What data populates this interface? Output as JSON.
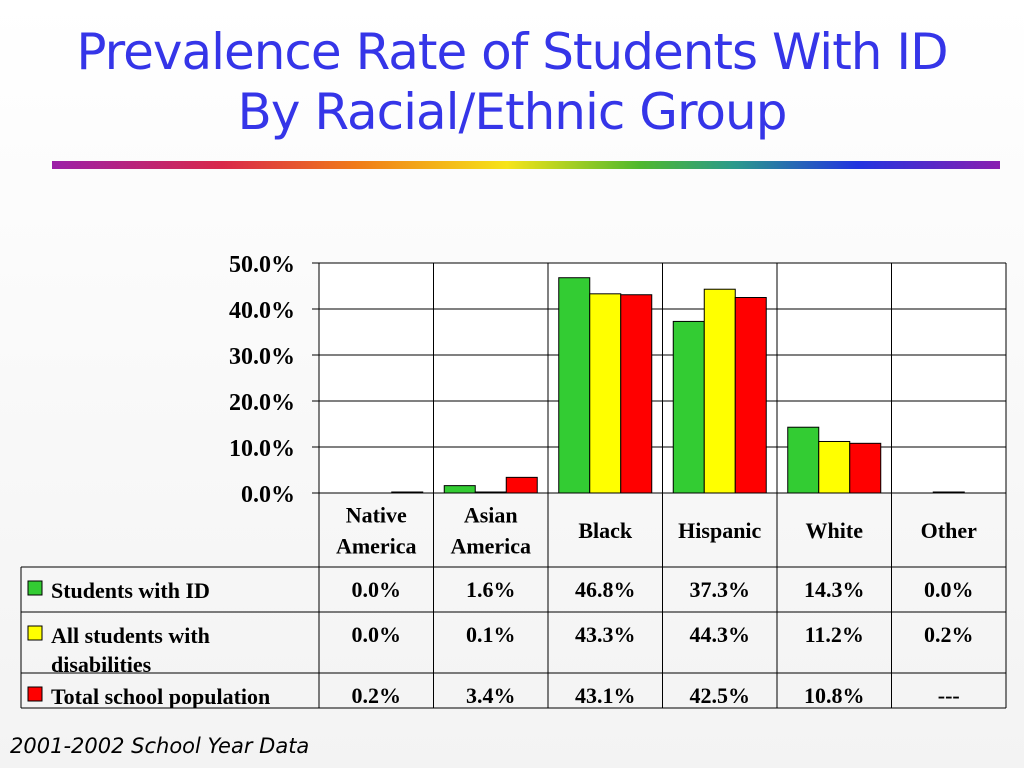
{
  "slide": {
    "title_line1": "Prevalence Rate of Students With ID",
    "title_line2": "By Racial/Ethnic Group",
    "footer": "2001-2002 School Year Data"
  },
  "chart_data": {
    "type": "bar",
    "categories": [
      [
        "Native",
        "America"
      ],
      [
        "Asian",
        "America"
      ],
      [
        "Black"
      ],
      [
        "Hispanic"
      ],
      [
        "White"
      ],
      [
        "Other"
      ]
    ],
    "ylim": [
      0,
      50
    ],
    "yticks": [
      0,
      10,
      20,
      30,
      40,
      50
    ],
    "ytick_labels": [
      "0.0%",
      "10.0%",
      "20.0%",
      "30.0%",
      "40.0%",
      "50.0%"
    ],
    "grid": true,
    "series": [
      {
        "name_lines": [
          "Students with ID"
        ],
        "color": "#33cc33",
        "values": [
          0.0,
          1.6,
          46.8,
          37.3,
          14.3,
          0.0
        ],
        "labels": [
          "0.0%",
          "1.6%",
          "46.8%",
          "37.3%",
          "14.3%",
          "0.0%"
        ]
      },
      {
        "name_lines": [
          "All students with",
          "disabilities"
        ],
        "color": "#ffff00",
        "values": [
          0.0,
          0.1,
          43.3,
          44.3,
          11.2,
          0.2
        ],
        "labels": [
          "0.0%",
          "0.1%",
          "43.3%",
          "44.3%",
          "11.2%",
          "0.2%"
        ]
      },
      {
        "name_lines": [
          "Total school population"
        ],
        "color": "#ff0000",
        "values": [
          0.2,
          3.4,
          43.1,
          42.5,
          10.8,
          0.0
        ],
        "labels": [
          "0.2%",
          "3.4%",
          "43.1%",
          "42.5%",
          "10.8%",
          "---"
        ]
      }
    ]
  }
}
